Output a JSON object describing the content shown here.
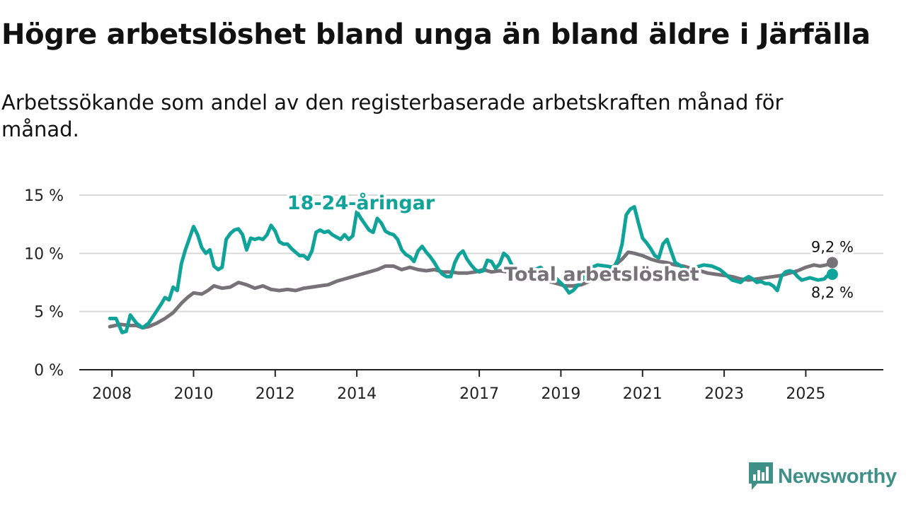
{
  "title": "Högre arbetslöshet bland unga än bland äldre i Järfälla",
  "subtitle": "Arbetssökande som andel av den registerbaserade arbetskraften månad för månad.",
  "brand": "Newsworthy",
  "colors": {
    "youth": "#0fa39a",
    "total": "#777278",
    "grid": "#d9d9d9",
    "axis": "#222222",
    "brand": "#3f9088"
  },
  "chart_data": {
    "type": "line",
    "title": "Högre arbetslöshet bland unga än bland äldre i Järfälla",
    "xlim": [
      2007.2,
      2026.9
    ],
    "ylim": [
      0,
      15
    ],
    "xticks": [
      {
        "value": 2008,
        "label": "2008"
      },
      {
        "value": 2010,
        "label": "2010"
      },
      {
        "value": 2012,
        "label": "2012"
      },
      {
        "value": 2014,
        "label": "2014"
      },
      {
        "value": 2017,
        "label": "2017"
      },
      {
        "value": 2019,
        "label": "2019"
      },
      {
        "value": 2021,
        "label": "2021"
      },
      {
        "value": 2023,
        "label": "2023"
      },
      {
        "value": 2025,
        "label": "2025"
      }
    ],
    "yticks": [
      {
        "value": 0,
        "label": "0 %"
      },
      {
        "value": 5,
        "label": "5 %"
      },
      {
        "value": 10,
        "label": "10 %"
      },
      {
        "value": 15,
        "label": "15 %"
      }
    ],
    "series": [
      {
        "name": "Total arbetslöshet",
        "key": "total",
        "label": "Total arbetslöshet",
        "end_label": "9,2 %",
        "points": [
          [
            2007.95,
            3.7
          ],
          [
            2008.2,
            3.9
          ],
          [
            2008.45,
            3.8
          ],
          [
            2008.6,
            3.8
          ],
          [
            2008.75,
            3.6
          ],
          [
            2008.9,
            3.7
          ],
          [
            2009.1,
            4.0
          ],
          [
            2009.3,
            4.4
          ],
          [
            2009.5,
            4.9
          ],
          [
            2009.7,
            5.7
          ],
          [
            2009.85,
            6.2
          ],
          [
            2010.0,
            6.6
          ],
          [
            2010.2,
            6.5
          ],
          [
            2010.35,
            6.8
          ],
          [
            2010.5,
            7.2
          ],
          [
            2010.7,
            7.0
          ],
          [
            2010.9,
            7.1
          ],
          [
            2011.1,
            7.5
          ],
          [
            2011.3,
            7.3
          ],
          [
            2011.5,
            7.0
          ],
          [
            2011.7,
            7.2
          ],
          [
            2011.9,
            6.9
          ],
          [
            2012.1,
            6.8
          ],
          [
            2012.3,
            6.9
          ],
          [
            2012.5,
            6.8
          ],
          [
            2012.7,
            7.0
          ],
          [
            2012.9,
            7.1
          ],
          [
            2013.1,
            7.2
          ],
          [
            2013.3,
            7.3
          ],
          [
            2013.5,
            7.6
          ],
          [
            2013.7,
            7.8
          ],
          [
            2013.9,
            8.0
          ],
          [
            2014.1,
            8.2
          ],
          [
            2014.3,
            8.4
          ],
          [
            2014.5,
            8.6
          ],
          [
            2014.7,
            8.9
          ],
          [
            2014.9,
            8.9
          ],
          [
            2015.1,
            8.6
          ],
          [
            2015.3,
            8.8
          ],
          [
            2015.5,
            8.6
          ],
          [
            2015.7,
            8.5
          ],
          [
            2015.9,
            8.6
          ],
          [
            2016.1,
            8.4
          ],
          [
            2016.3,
            8.4
          ],
          [
            2016.5,
            8.3
          ],
          [
            2016.7,
            8.3
          ],
          [
            2016.9,
            8.4
          ],
          [
            2017.1,
            8.6
          ],
          [
            2017.3,
            8.4
          ],
          [
            2017.5,
            8.5
          ],
          [
            2017.7,
            8.4
          ],
          [
            2017.9,
            8.3
          ],
          [
            2018.1,
            8.2
          ],
          [
            2018.3,
            8.0
          ],
          [
            2018.5,
            7.8
          ],
          [
            2018.7,
            7.6
          ],
          [
            2018.9,
            7.4
          ],
          [
            2019.1,
            7.2
          ],
          [
            2019.3,
            7.2
          ],
          [
            2019.5,
            7.3
          ],
          [
            2019.7,
            7.6
          ],
          [
            2019.9,
            8.0
          ],
          [
            2020.1,
            8.4
          ],
          [
            2020.3,
            8.9
          ],
          [
            2020.5,
            9.5
          ],
          [
            2020.65,
            10.1
          ],
          [
            2020.8,
            10.0
          ],
          [
            2021.0,
            9.8
          ],
          [
            2021.2,
            9.5
          ],
          [
            2021.4,
            9.3
          ],
          [
            2021.6,
            9.2
          ],
          [
            2021.8,
            9.0
          ],
          [
            2022.0,
            8.9
          ],
          [
            2022.2,
            8.7
          ],
          [
            2022.4,
            8.5
          ],
          [
            2022.6,
            8.3
          ],
          [
            2022.8,
            8.2
          ],
          [
            2023.0,
            8.1
          ],
          [
            2023.2,
            8.0
          ],
          [
            2023.4,
            7.8
          ],
          [
            2023.6,
            7.7
          ],
          [
            2023.8,
            7.8
          ],
          [
            2024.0,
            7.9
          ],
          [
            2024.2,
            8.0
          ],
          [
            2024.4,
            8.1
          ],
          [
            2024.6,
            8.3
          ],
          [
            2024.8,
            8.5
          ],
          [
            2025.0,
            8.8
          ],
          [
            2025.2,
            9.0
          ],
          [
            2025.35,
            8.9
          ],
          [
            2025.5,
            9.0
          ],
          [
            2025.65,
            9.2
          ]
        ]
      },
      {
        "name": "18-24-åringar",
        "key": "youth",
        "label": "18-24-åringar",
        "end_label": "8,2 %",
        "points": [
          [
            2007.95,
            4.4
          ],
          [
            2008.1,
            4.4
          ],
          [
            2008.25,
            3.2
          ],
          [
            2008.35,
            3.3
          ],
          [
            2008.45,
            4.7
          ],
          [
            2008.6,
            4.0
          ],
          [
            2008.75,
            3.6
          ],
          [
            2008.9,
            4.0
          ],
          [
            2009.05,
            4.8
          ],
          [
            2009.2,
            5.6
          ],
          [
            2009.3,
            6.2
          ],
          [
            2009.4,
            6.0
          ],
          [
            2009.5,
            7.1
          ],
          [
            2009.6,
            6.8
          ],
          [
            2009.7,
            9.1
          ],
          [
            2009.8,
            10.3
          ],
          [
            2009.9,
            11.3
          ],
          [
            2010.0,
            12.3
          ],
          [
            2010.1,
            11.6
          ],
          [
            2010.2,
            10.5
          ],
          [
            2010.3,
            10.0
          ],
          [
            2010.4,
            10.3
          ],
          [
            2010.5,
            8.9
          ],
          [
            2010.6,
            8.6
          ],
          [
            2010.7,
            8.8
          ],
          [
            2010.8,
            11.2
          ],
          [
            2010.9,
            11.7
          ],
          [
            2011.0,
            12.0
          ],
          [
            2011.1,
            12.1
          ],
          [
            2011.2,
            11.6
          ],
          [
            2011.3,
            10.3
          ],
          [
            2011.4,
            11.3
          ],
          [
            2011.5,
            11.2
          ],
          [
            2011.6,
            11.3
          ],
          [
            2011.7,
            11.2
          ],
          [
            2011.8,
            11.6
          ],
          [
            2011.9,
            12.4
          ],
          [
            2012.0,
            11.9
          ],
          [
            2012.1,
            11.0
          ],
          [
            2012.2,
            10.8
          ],
          [
            2012.3,
            10.8
          ],
          [
            2012.4,
            10.4
          ],
          [
            2012.5,
            10.1
          ],
          [
            2012.6,
            9.8
          ],
          [
            2012.7,
            9.8
          ],
          [
            2012.8,
            9.5
          ],
          [
            2012.9,
            10.2
          ],
          [
            2013.0,
            11.8
          ],
          [
            2013.1,
            12.0
          ],
          [
            2013.2,
            11.8
          ],
          [
            2013.3,
            11.9
          ],
          [
            2013.4,
            11.6
          ],
          [
            2013.5,
            11.4
          ],
          [
            2013.6,
            11.2
          ],
          [
            2013.7,
            11.6
          ],
          [
            2013.8,
            11.2
          ],
          [
            2013.9,
            11.5
          ],
          [
            2014.0,
            13.6
          ],
          [
            2014.1,
            13.0
          ],
          [
            2014.2,
            12.5
          ],
          [
            2014.3,
            12.0
          ],
          [
            2014.4,
            11.8
          ],
          [
            2014.5,
            13.0
          ],
          [
            2014.6,
            12.6
          ],
          [
            2014.7,
            11.9
          ],
          [
            2014.8,
            11.7
          ],
          [
            2014.9,
            11.6
          ],
          [
            2015.0,
            11.2
          ],
          [
            2015.1,
            10.3
          ],
          [
            2015.2,
            9.9
          ],
          [
            2015.3,
            9.7
          ],
          [
            2015.4,
            9.3
          ],
          [
            2015.5,
            10.2
          ],
          [
            2015.6,
            10.6
          ],
          [
            2015.7,
            10.1
          ],
          [
            2015.8,
            9.7
          ],
          [
            2015.9,
            9.2
          ],
          [
            2016.0,
            8.6
          ],
          [
            2016.1,
            8.2
          ],
          [
            2016.2,
            8.0
          ],
          [
            2016.3,
            8.0
          ],
          [
            2016.4,
            9.2
          ],
          [
            2016.5,
            9.9
          ],
          [
            2016.6,
            10.2
          ],
          [
            2016.7,
            9.5
          ],
          [
            2016.8,
            9.0
          ],
          [
            2016.9,
            8.6
          ],
          [
            2017.0,
            8.4
          ],
          [
            2017.1,
            8.5
          ],
          [
            2017.2,
            9.4
          ],
          [
            2017.3,
            9.3
          ],
          [
            2017.4,
            8.7
          ],
          [
            2017.5,
            9.1
          ],
          [
            2017.6,
            10.0
          ],
          [
            2017.7,
            9.7
          ],
          [
            2017.8,
            9.0
          ],
          [
            2017.9,
            8.6
          ],
          [
            2018.1,
            8.3
          ],
          [
            2018.3,
            8.5
          ],
          [
            2018.5,
            8.8
          ],
          [
            2018.7,
            8.2
          ],
          [
            2018.9,
            7.8
          ],
          [
            2019.1,
            7.1
          ],
          [
            2019.2,
            6.6
          ],
          [
            2019.3,
            6.8
          ],
          [
            2019.5,
            7.6
          ],
          [
            2019.7,
            8.7
          ],
          [
            2019.9,
            9.0
          ],
          [
            2020.1,
            8.9
          ],
          [
            2020.3,
            8.8
          ],
          [
            2020.4,
            9.5
          ],
          [
            2020.5,
            10.8
          ],
          [
            2020.6,
            13.3
          ],
          [
            2020.7,
            13.8
          ],
          [
            2020.8,
            14.0
          ],
          [
            2020.9,
            12.6
          ],
          [
            2021.0,
            11.3
          ],
          [
            2021.1,
            10.9
          ],
          [
            2021.2,
            10.4
          ],
          [
            2021.3,
            9.8
          ],
          [
            2021.4,
            9.6
          ],
          [
            2021.5,
            10.8
          ],
          [
            2021.6,
            11.2
          ],
          [
            2021.7,
            10.2
          ],
          [
            2021.8,
            9.2
          ],
          [
            2021.9,
            9.0
          ],
          [
            2022.1,
            8.5
          ],
          [
            2022.3,
            8.8
          ],
          [
            2022.5,
            9.0
          ],
          [
            2022.7,
            8.9
          ],
          [
            2022.9,
            8.6
          ],
          [
            2023.0,
            8.3
          ],
          [
            2023.1,
            8.0
          ],
          [
            2023.2,
            7.7
          ],
          [
            2023.3,
            7.6
          ],
          [
            2023.4,
            7.5
          ],
          [
            2023.5,
            7.8
          ],
          [
            2023.6,
            8.0
          ],
          [
            2023.7,
            7.8
          ],
          [
            2023.8,
            7.5
          ],
          [
            2023.9,
            7.6
          ],
          [
            2024.0,
            7.4
          ],
          [
            2024.1,
            7.4
          ],
          [
            2024.2,
            7.2
          ],
          [
            2024.3,
            6.8
          ],
          [
            2024.4,
            8.0
          ],
          [
            2024.5,
            8.4
          ],
          [
            2024.6,
            8.5
          ],
          [
            2024.7,
            8.4
          ],
          [
            2024.8,
            8.0
          ],
          [
            2024.9,
            7.7
          ],
          [
            2025.0,
            7.8
          ],
          [
            2025.1,
            7.9
          ],
          [
            2025.3,
            7.7
          ],
          [
            2025.45,
            7.8
          ],
          [
            2025.6,
            8.3
          ],
          [
            2025.65,
            8.2
          ]
        ]
      }
    ]
  }
}
